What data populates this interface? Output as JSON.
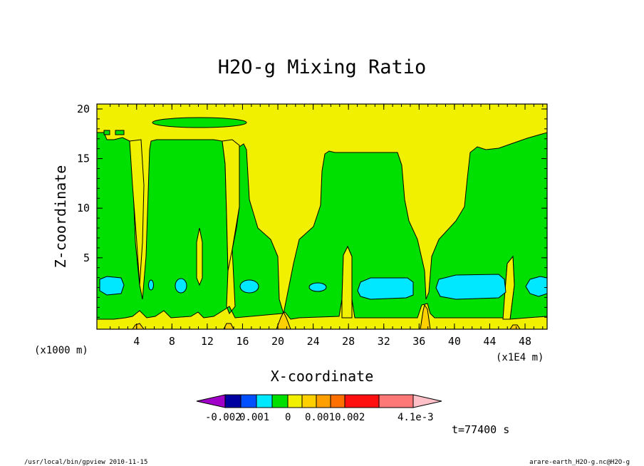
{
  "chart_data": {
    "type": "heatmap",
    "title": "H2O-g Mixing Ratio",
    "xlabel": "X-coordinate",
    "ylabel": "Z-coordinate",
    "x_ticks": [
      "4",
      "8",
      "12",
      "16",
      "20",
      "24",
      "28",
      "32",
      "36",
      "40",
      "44",
      "48"
    ],
    "y_ticks": [
      "5",
      "10",
      "15",
      "20"
    ],
    "x_unit_left": "(x1000 m)",
    "x_unit_right": "(x1E4 m)",
    "xlim": [
      0,
      51
    ],
    "ylim": [
      0,
      22.7
    ],
    "colorbar": {
      "labels": [
        "-0.002",
        "0.001",
        "0",
        "0.0010.002",
        "4.1e-3"
      ],
      "colors": [
        "#a000c8",
        "#0000a0",
        "#0050ff",
        "#00e8ff",
        "#00e000",
        "#f0f000",
        "#ffd000",
        "#ffa000",
        "#ff7000",
        "#ff1010",
        "#ff7878",
        "#ffc0c8"
      ]
    },
    "time_label": "t=77400 s",
    "regions_green": [
      {
        "name": "band-0",
        "points": [
          [
            0,
            1
          ],
          [
            0,
            19.8
          ],
          [
            1,
            19.6
          ],
          [
            2,
            19.6
          ],
          [
            3,
            18
          ],
          [
            4.2,
            5
          ],
          [
            5,
            2
          ],
          [
            6,
            1.6
          ],
          [
            7,
            2
          ],
          [
            8,
            1.6
          ],
          [
            9,
            2.2
          ],
          [
            10,
            1.6
          ],
          [
            11,
            2
          ],
          [
            12,
            1.6
          ],
          [
            13,
            2
          ],
          [
            14,
            1.6
          ],
          [
            15,
            1
          ],
          [
            13,
            0.6
          ],
          [
            9,
            0.6
          ],
          [
            5,
            0.6
          ],
          [
            2,
            0.6
          ]
        ]
      }
    ]
  },
  "footer": {
    "left": "/usr/local/bin/gpview  2010-11-15",
    "right": "arare-earth_H2O-g.nc@H2O-g"
  }
}
